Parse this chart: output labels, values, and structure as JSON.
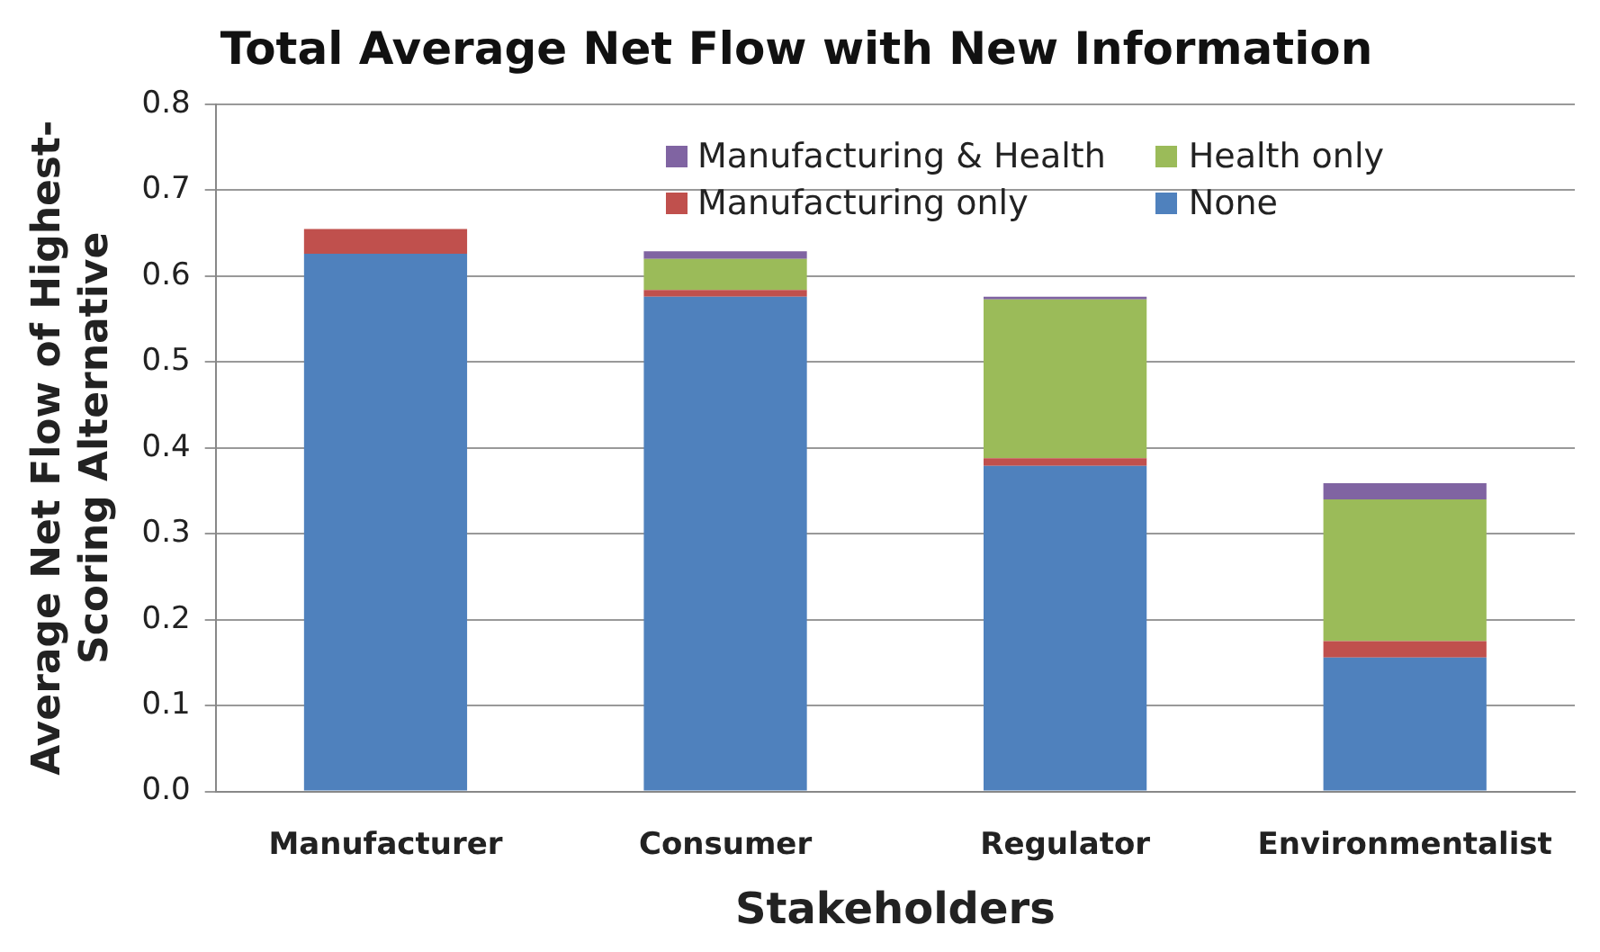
{
  "chart_data": {
    "type": "bar",
    "title": "Total Average Net Flow with New Information",
    "xlabel": "Stakeholders",
    "ylabel": "Average Net Flow of Highest-\nScoring Alternative",
    "categories": [
      "Manufacturer",
      "Consumer",
      "Regulator",
      "Environmentalist"
    ],
    "stacked": true,
    "series": [
      {
        "name": "None",
        "color": "#4f81bd",
        "values": [
          0.626,
          0.576,
          0.379,
          0.156
        ]
      },
      {
        "name": "Manufacturing only",
        "color": "#c0504d",
        "values": [
          0.029,
          0.008,
          0.009,
          0.019
        ]
      },
      {
        "name": "Health only",
        "color": "#9bbb59",
        "values": [
          0,
          0.036,
          0.185,
          0.165
        ]
      },
      {
        "name": "Manufacturing & Health",
        "color": "#8064a2",
        "values": [
          0,
          0.009,
          0.003,
          0.019
        ]
      }
    ],
    "ylim": [
      0,
      0.8
    ],
    "yticks": [
      {
        "value": 0,
        "label": "0.0"
      },
      {
        "value": 0.1,
        "label": "0.1"
      },
      {
        "value": 0.2,
        "label": "0.2"
      },
      {
        "value": 0.3,
        "label": "0.3"
      },
      {
        "value": 0.4,
        "label": "0.4"
      },
      {
        "value": 0.5,
        "label": "0.5"
      },
      {
        "value": 0.6,
        "label": "0.6"
      },
      {
        "value": 0.7,
        "label": "0.7"
      },
      {
        "value": 0.8,
        "label": "0.8"
      }
    ],
    "grid": "y",
    "legend": "top right"
  }
}
